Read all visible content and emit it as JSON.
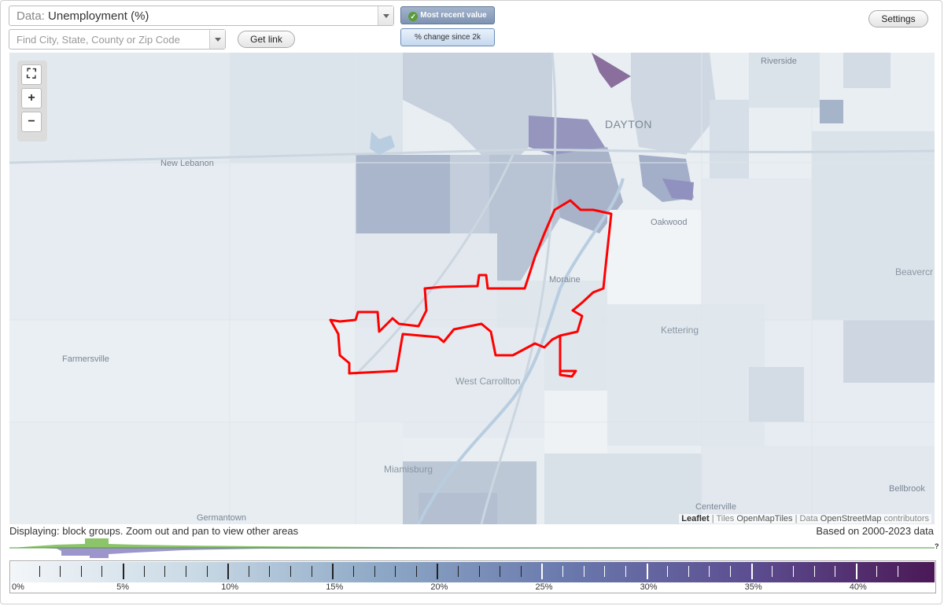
{
  "header": {
    "data_label": "Data:",
    "data_value": "Unemployment (%)",
    "search_placeholder": "Find City, State, County or Zip Code",
    "get_link": "Get link",
    "mode_active": "Most recent value",
    "mode_inactive": "% change since 2k",
    "settings": "Settings"
  },
  "map": {
    "labels": {
      "riverside": "Riverside",
      "dayton": "DAYTON",
      "new_lebanon": "New Lebanon",
      "oakwood": "Oakwood",
      "moraine": "Moraine",
      "beavercreek": "Beavercr",
      "kettering": "Kettering",
      "farmersville": "Farmersville",
      "west_carrollton": "West Carrollton",
      "miamisburg": "Miamisburg",
      "bellbrook": "Bellbrook",
      "germantown": "Germantown",
      "centerville": "Centerville"
    },
    "highlight_color": "#ff0000",
    "attribution": {
      "leaflet": "Leaflet",
      "sep1": "|",
      "tiles": "Tiles",
      "tiles_src": "OpenMapTiles",
      "sep2": "|",
      "data": "Data",
      "data_src": "OpenStreetMap",
      "contrib": "contributors"
    }
  },
  "status": {
    "displaying": "Displaying: block groups. Zoom out and pan to view other areas",
    "based_on": "Based on 2000-2023 data",
    "histogram_help": "?"
  },
  "legend": {
    "min": 0,
    "max": 42,
    "tick_labels": [
      "0%",
      "5%",
      "10%",
      "15%",
      "20%",
      "25%",
      "30%",
      "35%",
      "40%"
    ],
    "colors": [
      "#f3f6f9",
      "#c9d9e5",
      "#8da8c6",
      "#6a79ad",
      "#5c4e91",
      "#4b1856"
    ]
  }
}
